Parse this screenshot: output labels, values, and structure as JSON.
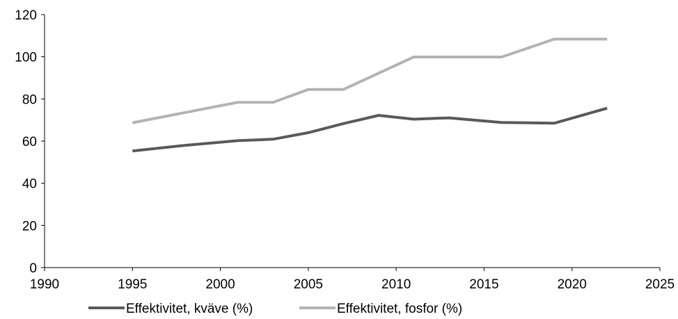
{
  "chart_data": {
    "type": "line",
    "title": "",
    "xlabel": "",
    "ylabel": "",
    "xlim": [
      1990,
      2025
    ],
    "ylim": [
      0,
      120
    ],
    "x_ticks": [
      1990,
      1995,
      2000,
      2005,
      2010,
      2015,
      2020,
      2025
    ],
    "y_ticks": [
      0,
      20,
      40,
      60,
      80,
      100,
      120
    ],
    "x_tick_labels": [
      "1990",
      "1995",
      "2000",
      "2005",
      "2010",
      "2015",
      "2020",
      "2025"
    ],
    "y_tick_labels": [
      "0",
      "20",
      "40",
      "60",
      "80",
      "100",
      "120"
    ],
    "grid": false,
    "legend_position": "bottom",
    "series": [
      {
        "name": "Effektivitet, kväve (%)",
        "color": "#595959",
        "points": [
          {
            "x": 1995,
            "y": 55.3
          },
          {
            "x": 1998,
            "y": 58.0
          },
          {
            "x": 2001,
            "y": 60.2
          },
          {
            "x": 2003,
            "y": 60.9
          },
          {
            "x": 2005,
            "y": 64.0
          },
          {
            "x": 2007,
            "y": 68.3
          },
          {
            "x": 2009,
            "y": 72.2
          },
          {
            "x": 2011,
            "y": 70.4
          },
          {
            "x": 2013,
            "y": 71.0
          },
          {
            "x": 2016,
            "y": 68.8
          },
          {
            "x": 2019,
            "y": 68.5
          },
          {
            "x": 2022,
            "y": 75.6
          }
        ]
      },
      {
        "name": "Effektivitet, fosfor (%)",
        "color": "#b3b3b3",
        "points": [
          {
            "x": 1995,
            "y": 68.7
          },
          {
            "x": 2001,
            "y": 78.4
          },
          {
            "x": 2003,
            "y": 78.4
          },
          {
            "x": 2005,
            "y": 84.5
          },
          {
            "x": 2007,
            "y": 84.5
          },
          {
            "x": 2011,
            "y": 99.9
          },
          {
            "x": 2016,
            "y": 99.9
          },
          {
            "x": 2019,
            "y": 108.4
          },
          {
            "x": 2022,
            "y": 108.4
          }
        ]
      }
    ]
  }
}
